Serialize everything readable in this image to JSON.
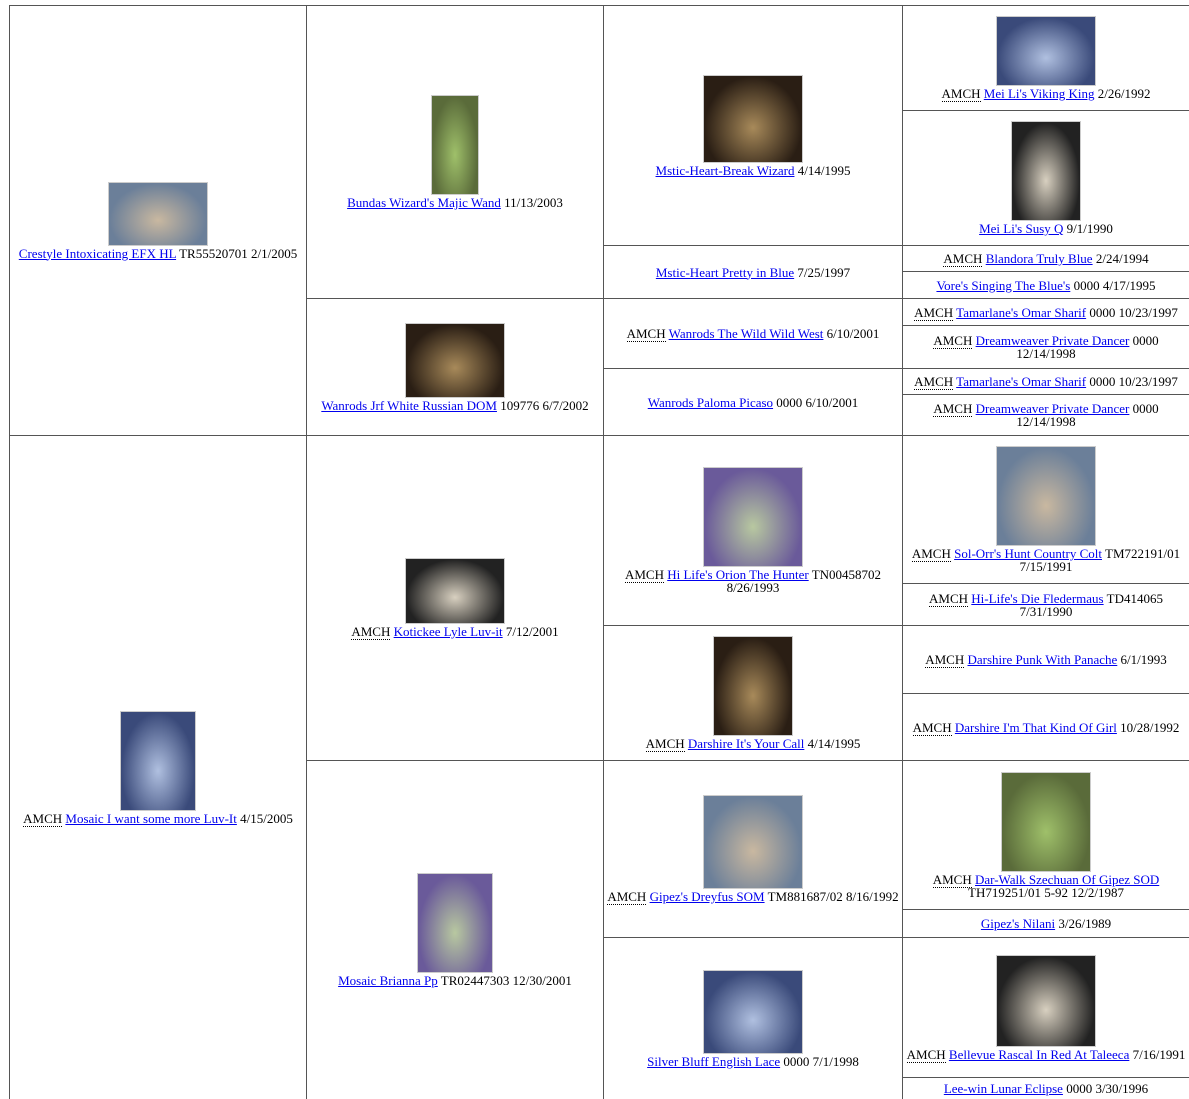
{
  "pedigree": [
    {
      "name": "Crestyle Intoxicating EFX HL",
      "info": "TR55520701 2/1/2005"
    },
    {
      "name": "Bundas Wizard's Majic Wand",
      "info": "11/13/2003"
    },
    {
      "name": "Mstic-Heart-Break Wizard",
      "info": "4/14/1995"
    },
    {
      "title": "AMCH",
      "name": "Mei Li's Viking King",
      "info": "2/26/1992"
    },
    {
      "name": "Mei Li's Susy Q",
      "info": "9/1/1990"
    },
    {
      "name": "Mstic-Heart Pretty in Blue",
      "info": "7/25/1997"
    },
    {
      "title": "AMCH",
      "name": "Blandora Truly Blue",
      "info": "2/24/1994"
    },
    {
      "name": "Vore's Singing The Blue's",
      "info": "0000 4/17/1995"
    },
    {
      "name": "Wanrods Jrf White Russian DOM",
      "info": "109776 6/7/2002"
    },
    {
      "title": "AMCH",
      "name": "Wanrods The Wild Wild West",
      "info": "6/10/2001"
    },
    {
      "title": "AMCH",
      "name": "Tamarlane's Omar Sharif",
      "info": "0000 10/23/1997"
    },
    {
      "title": "AMCH",
      "name": "Dreamweaver Private Dancer",
      "info": "0000 12/14/1998"
    },
    {
      "name": "Wanrods Paloma Picaso",
      "info": "0000 6/10/2001"
    },
    {
      "title": "AMCH",
      "name": "Tamarlane's Omar Sharif",
      "info": "0000 10/23/1997"
    },
    {
      "title": "AMCH",
      "name": "Dreamweaver Private Dancer",
      "info": "0000 12/14/1998"
    },
    {
      "title": "AMCH",
      "name": "Mosaic I want some more Luv-It",
      "info": "4/15/2005"
    },
    {
      "title": "AMCH",
      "name": "Kotickee Lyle Luv-it",
      "info": "7/12/2001"
    },
    {
      "title": "AMCH",
      "name": "Hi Life's Orion The Hunter",
      "info": "TN00458702 8/26/1993"
    },
    {
      "title": "AMCH",
      "name": "Sol-Orr's Hunt Country Colt",
      "info": "TM722191/01 7/15/1991"
    },
    {
      "title": "AMCH",
      "name": "Hi-Life's Die Fledermaus",
      "info": "TD414065 7/31/1990"
    },
    {
      "title": "AMCH",
      "name": "Darshire It's Your Call",
      "info": "4/14/1995"
    },
    {
      "title": "AMCH",
      "name": "Darshire Punk With Panache",
      "info": "6/1/1993"
    },
    {
      "title": "AMCH",
      "name": "Darshire I'm That Kind Of Girl",
      "info": "10/28/1992"
    },
    {
      "name": "Mosaic Brianna Pp",
      "info": "TR02447303 12/30/2001"
    },
    {
      "title": "AMCH",
      "name": "Gipez's Dreyfus SOM",
      "info": "TM881687/02 8/16/1992"
    },
    {
      "title": "AMCH",
      "name": "Dar-Walk Szechuan Of Gipez SOD",
      "info": "TH719251/01 5-92 12/2/1987"
    },
    {
      "name": "Gipez's Nilani",
      "info": "3/26/1989"
    },
    {
      "name": "Silver Bluff English Lace",
      "info": "0000 7/1/1998"
    },
    {
      "title": "AMCH",
      "name": "Bellevue Rascal In Red At Taleeca",
      "info": "7/16/1991"
    },
    {
      "name": "Lee-win Lunar Eclipse",
      "info": "0000 3/30/1996"
    }
  ]
}
